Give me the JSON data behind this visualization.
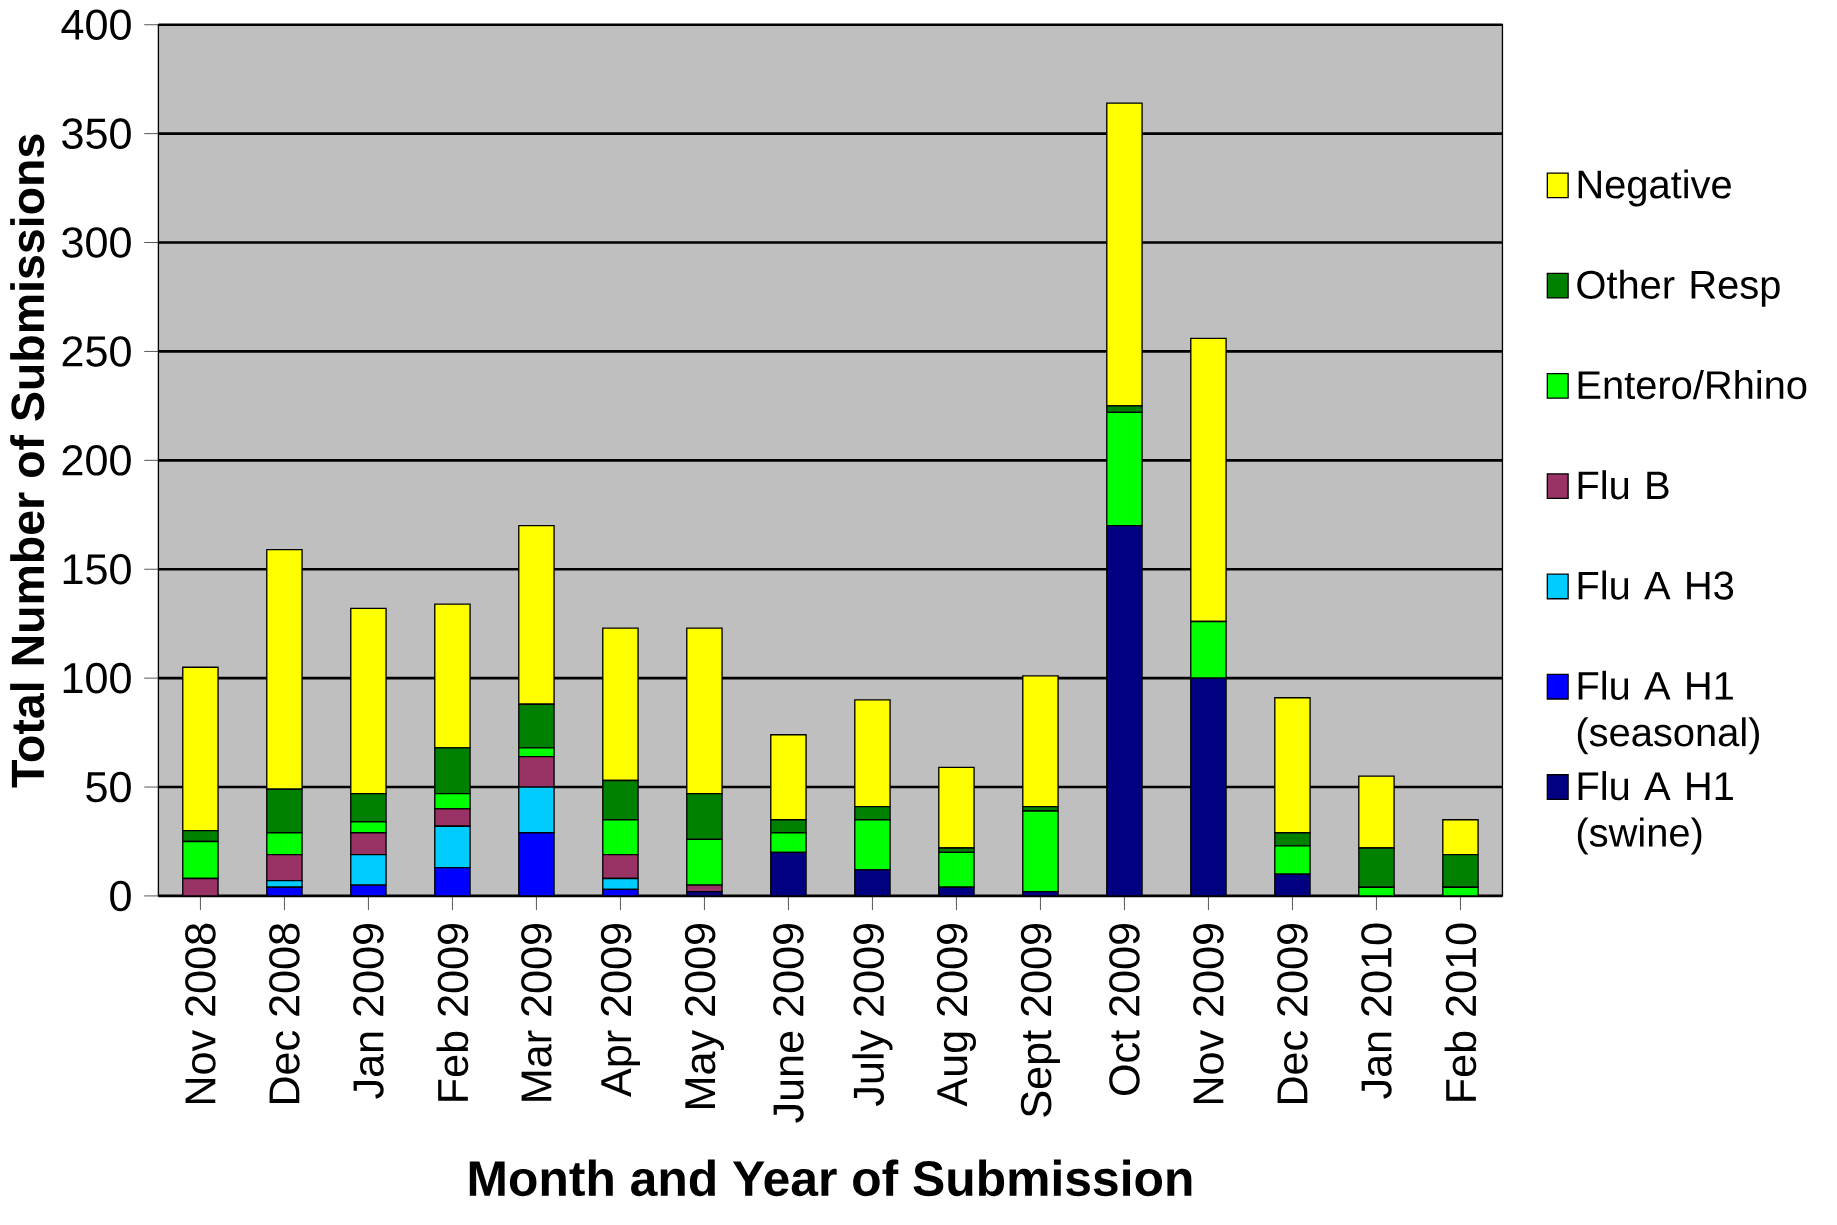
{
  "chart_data": {
    "type": "bar",
    "stacked": true,
    "xlabel": "Month and Year of Submission",
    "ylabel": "Total Number of Submissions",
    "categories": [
      "Nov 2008",
      "Dec 2008",
      "Jan 2009",
      "Feb 2009",
      "Mar 2009",
      "Apr 2009",
      "May 2009",
      "June 2009",
      "July 2009",
      "Aug 2009",
      "Sept 2009",
      "Oct 2009",
      "Nov 2009",
      "Dec 2009",
      "Jan 2010",
      "Feb 2010"
    ],
    "series": [
      {
        "name": "Flu A H1 (swine)",
        "color": "#000080",
        "values": [
          0,
          0,
          0,
          0,
          0,
          0,
          2,
          20,
          12,
          4,
          2,
          170,
          100,
          10,
          0,
          0
        ]
      },
      {
        "name": "Flu A H1 (seasonal)",
        "color": "#0000ff",
        "values": [
          0,
          4,
          5,
          13,
          29,
          3,
          0,
          0,
          0,
          0,
          0,
          0,
          0,
          0,
          0,
          0
        ]
      },
      {
        "name": "Flu A H3",
        "color": "#00ccff",
        "values": [
          0,
          3,
          14,
          19,
          21,
          5,
          0,
          0,
          0,
          0,
          0,
          0,
          0,
          0,
          0,
          0
        ]
      },
      {
        "name": "Flu B",
        "color": "#993366",
        "values": [
          8,
          12,
          10,
          8,
          14,
          11,
          3,
          0,
          0,
          0,
          0,
          0,
          0,
          0,
          0,
          0
        ]
      },
      {
        "name": "Entero/Rhino",
        "color": "#00ff00",
        "values": [
          17,
          10,
          5,
          7,
          4,
          16,
          21,
          9,
          23,
          16,
          37,
          52,
          26,
          13,
          4,
          4
        ]
      },
      {
        "name": "Other Resp",
        "color": "#008000",
        "values": [
          5,
          20,
          13,
          21,
          20,
          18,
          21,
          6,
          6,
          2,
          2,
          3,
          0,
          6,
          18,
          15
        ]
      },
      {
        "name": "Negative",
        "color": "#ffff00",
        "values": [
          75,
          110,
          85,
          66,
          82,
          70,
          76,
          39,
          49,
          37,
          60,
          139,
          130,
          62,
          33,
          16
        ]
      }
    ],
    "ylim": [
      0,
      400
    ],
    "yticks": [
      0,
      50,
      100,
      150,
      200,
      250,
      300,
      350,
      400
    ],
    "grid": "y",
    "legend": "right"
  }
}
